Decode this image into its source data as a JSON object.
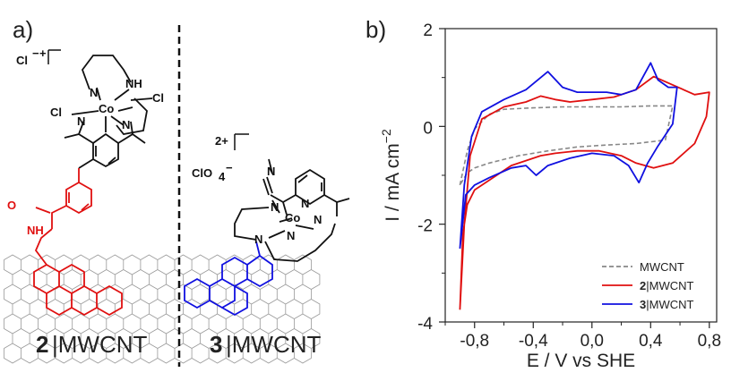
{
  "panel_a": {
    "label": "a)",
    "complex2": {
      "counter_ion": "Cl",
      "counter_charge": "−",
      "complex_charge": "+",
      "metal": "Co",
      "ligand_atoms": {
        "n1": "N",
        "n2": "N",
        "n3": "N",
        "nh": "NH",
        "cl_left": "Cl",
        "cl_right": "Cl"
      },
      "amide_o": "O",
      "amide_nh": "NH"
    },
    "complex3": {
      "counter_ion": "ClO",
      "counter_sub": "4",
      "counter_charge": "−",
      "complex_charge": "2+",
      "metal": "Co",
      "ligand_atoms": {
        "n1": "N",
        "n2": "N",
        "n3": "N",
        "n4": "N",
        "n5": "N",
        "n6": "N"
      }
    },
    "label2": {
      "number": "2",
      "suffix": "|MWCNT"
    },
    "label3": {
      "number": "3",
      "suffix": "|MWCNT"
    }
  },
  "panel_b": {
    "label": "b)"
  },
  "colors": {
    "mwcnt": "#888888",
    "complex2": "#e01010",
    "complex3": "#1010e0"
  },
  "chart_data": {
    "type": "line",
    "xlabel": "E / V vs SHE",
    "ylabel": "I / mA cm",
    "ylabel_sup": "−2",
    "xlim": [
      -1.0,
      0.85
    ],
    "ylim": [
      -4,
      2
    ],
    "xticks": [
      -0.8,
      -0.4,
      0.0,
      0.4,
      0.8
    ],
    "xtick_labels": [
      "-0,8",
      "-0,4",
      "0,0",
      "0,4",
      "0,8"
    ],
    "yticks": [
      -4,
      -2,
      0,
      2
    ],
    "ytick_labels": [
      "-4",
      "-2",
      "0",
      "2"
    ],
    "legend_position": "bottom-right",
    "series": [
      {
        "name": "MWCNT",
        "legend_number": "",
        "style": "dashed",
        "color": "#888888",
        "x": [
          -0.9,
          -0.85,
          -0.8,
          -0.7,
          -0.6,
          -0.4,
          -0.2,
          0.0,
          0.2,
          0.4,
          0.55,
          0.5,
          0.3,
          0.1,
          -0.1,
          -0.3,
          -0.5,
          -0.7,
          -0.8,
          -0.85,
          -0.9
        ],
        "y": [
          -1.2,
          -0.5,
          -0.05,
          0.25,
          0.35,
          0.38,
          0.4,
          0.4,
          0.4,
          0.42,
          0.42,
          -0.28,
          -0.35,
          -0.38,
          -0.42,
          -0.5,
          -0.6,
          -0.75,
          -0.85,
          -0.95,
          -1.2
        ]
      },
      {
        "name": "MWCNT",
        "legend_number": "2",
        "style": "solid",
        "color": "#e01010",
        "x": [
          -0.9,
          -0.87,
          -0.83,
          -0.75,
          -0.6,
          -0.45,
          -0.35,
          -0.25,
          -0.15,
          0.0,
          0.15,
          0.3,
          0.42,
          0.55,
          0.7,
          0.8,
          0.78,
          0.7,
          0.55,
          0.42,
          0.3,
          0.2,
          0.05,
          -0.1,
          -0.25,
          -0.35,
          -0.45,
          -0.55,
          -0.7,
          -0.8,
          -0.85,
          -0.88,
          -0.9
        ],
        "y": [
          -3.75,
          -2.0,
          -0.6,
          0.15,
          0.4,
          0.5,
          0.62,
          0.55,
          0.5,
          0.55,
          0.6,
          0.75,
          1.02,
          0.85,
          0.65,
          0.7,
          0.2,
          -0.35,
          -0.75,
          -0.85,
          -0.75,
          -0.6,
          -0.5,
          -0.5,
          -0.55,
          -0.6,
          -0.7,
          -0.8,
          -1.1,
          -1.3,
          -1.6,
          -2.2,
          -3.75
        ]
      },
      {
        "name": "MWCNT",
        "legend_number": "3",
        "style": "solid",
        "color": "#1010e0",
        "x": [
          -0.9,
          -0.87,
          -0.82,
          -0.75,
          -0.6,
          -0.45,
          -0.3,
          -0.2,
          -0.1,
          0.0,
          0.1,
          0.2,
          0.3,
          0.4,
          0.45,
          0.52,
          0.58,
          0.55,
          0.45,
          0.38,
          0.32,
          0.25,
          0.15,
          0.0,
          -0.15,
          -0.3,
          -0.38,
          -0.45,
          -0.55,
          -0.7,
          -0.8,
          -0.86,
          -0.9
        ],
        "y": [
          -2.5,
          -1.2,
          -0.2,
          0.3,
          0.55,
          0.75,
          1.12,
          0.8,
          0.7,
          0.7,
          0.7,
          0.65,
          0.75,
          1.3,
          0.95,
          0.8,
          0.8,
          0.05,
          -0.4,
          -0.75,
          -1.15,
          -0.8,
          -0.6,
          -0.55,
          -0.65,
          -0.8,
          -1.0,
          -0.8,
          -0.85,
          -1.05,
          -1.2,
          -1.4,
          -2.5
        ]
      }
    ]
  }
}
